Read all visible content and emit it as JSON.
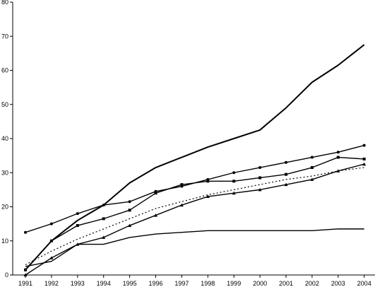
{
  "chart_data": {
    "type": "line",
    "title": "",
    "xlabel": "",
    "ylabel": "",
    "ylim": [
      0,
      80
    ],
    "yticks": [
      0,
      10,
      20,
      30,
      40,
      50,
      60,
      70,
      80
    ],
    "categories": [
      "1991",
      "1992",
      "1993",
      "1994",
      "1995",
      "1996",
      "1997",
      "1998",
      "1999",
      "2000",
      "2001",
      "2002",
      "2003",
      "2004"
    ],
    "grid": false,
    "legend": "none",
    "line_color": "#000000",
    "series": [
      {
        "values": [
          1.5,
          10,
          16,
          20.5,
          27,
          31.5,
          34.5,
          37.5,
          40,
          42.5,
          49,
          56.5,
          61.5,
          67.5
        ],
        "marker": "none",
        "style": "solid-thick"
      },
      {
        "values": [
          12.5,
          15,
          18,
          20.5,
          21.5,
          24.5,
          26,
          28,
          30,
          31.5,
          33,
          34.5,
          36,
          38
        ],
        "marker": "dot",
        "style": "solid"
      },
      {
        "values": [
          1.5,
          10,
          14.5,
          16.5,
          19,
          24,
          26.5,
          27.5,
          27.5,
          28.5,
          29.5,
          31.5,
          34.5,
          34
        ],
        "marker": "square",
        "style": "solid"
      },
      {
        "values": [
          0,
          5,
          9,
          11,
          14.5,
          17.5,
          20.5,
          23,
          24,
          25,
          26.5,
          28,
          30.5,
          32.5
        ],
        "marker": "triangle",
        "style": "solid"
      },
      {
        "values": [
          2.5,
          4,
          9,
          9,
          11,
          12,
          12.5,
          13,
          13,
          13,
          13,
          13,
          13.5,
          13.5
        ],
        "marker": "none",
        "style": "solid"
      },
      {
        "values": [
          3,
          7,
          10.5,
          13.5,
          16.5,
          19.5,
          21.5,
          23.5,
          25,
          26.5,
          28,
          29,
          30.5,
          31.5
        ],
        "marker": "none",
        "style": "dotted"
      }
    ]
  }
}
